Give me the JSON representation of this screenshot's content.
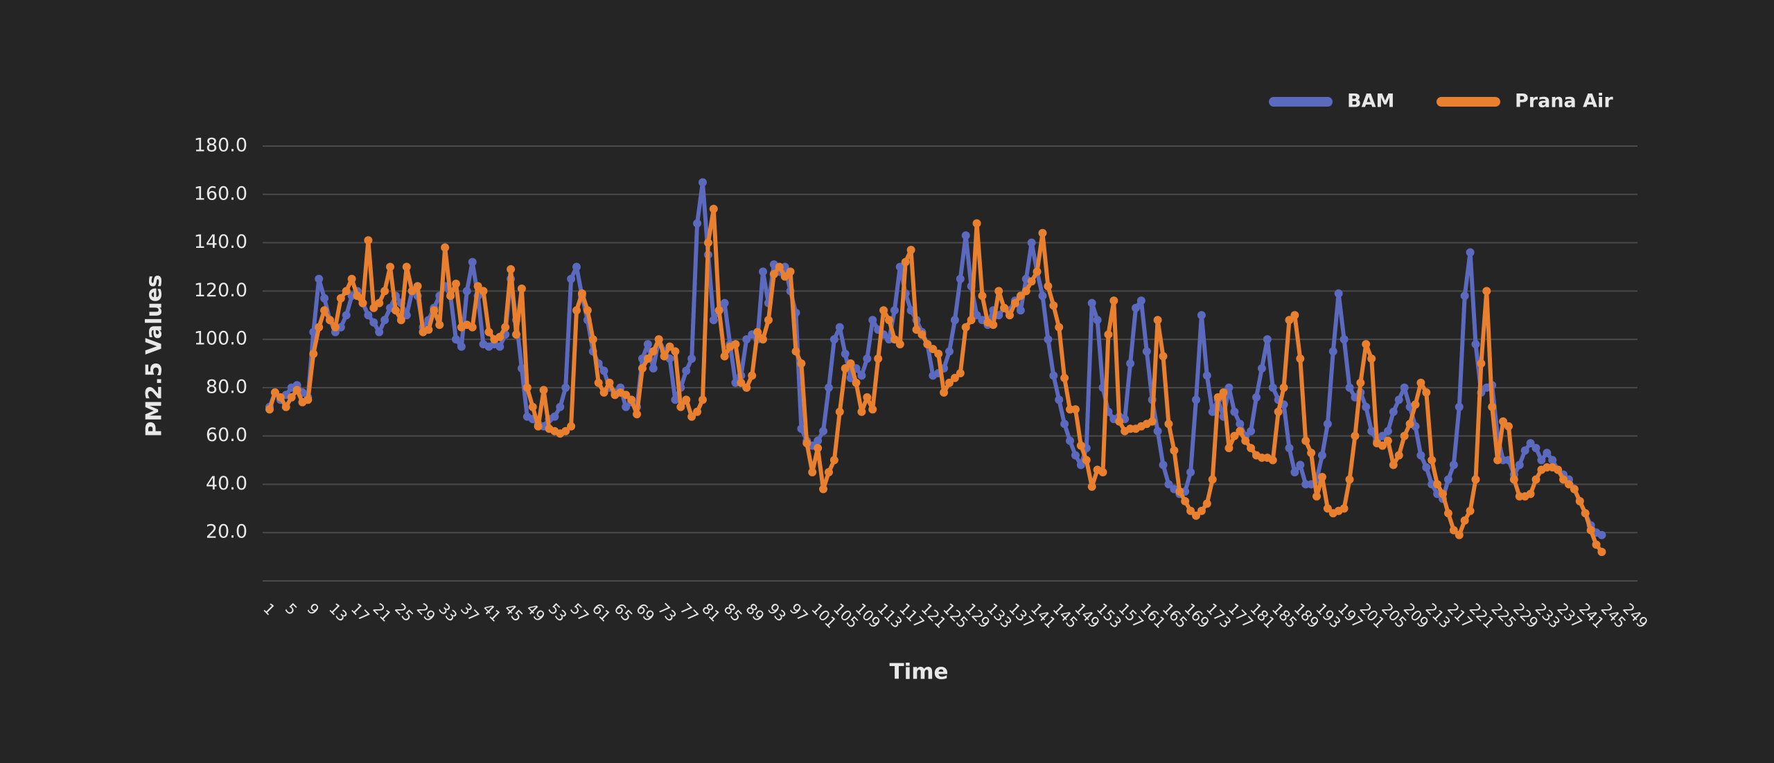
{
  "chart_data": {
    "type": "line",
    "x_label": "Time",
    "y_label": "PM2.5 Values",
    "categories": [
      "1",
      null,
      null,
      null,
      "5",
      null,
      null,
      null,
      "9",
      null,
      null,
      null,
      "13",
      null,
      null,
      null,
      "17",
      null,
      null,
      null,
      "21",
      null,
      null,
      null,
      "25",
      null,
      null,
      null,
      "29",
      null,
      null,
      null,
      "33",
      null,
      null,
      null,
      "37",
      null,
      null,
      null,
      "41",
      null,
      null,
      null,
      "45",
      null,
      null,
      null,
      "49",
      null,
      null,
      null,
      "53",
      null,
      null,
      null,
      "57",
      null,
      null,
      null,
      "61",
      null,
      null,
      null,
      "65",
      null,
      null,
      null,
      "69",
      null,
      null,
      null,
      "73",
      null,
      null,
      null,
      "77",
      null,
      null,
      null,
      "81",
      null,
      null,
      null,
      "85",
      null,
      null,
      null,
      "89",
      null,
      null,
      null,
      "93",
      null,
      null,
      null,
      "97",
      null,
      null,
      null,
      "101",
      null,
      null,
      null,
      "105",
      null,
      null,
      null,
      "109",
      null,
      null,
      null,
      "113",
      null,
      null,
      null,
      "117",
      null,
      null,
      null,
      "121",
      null,
      null,
      null,
      "125",
      null,
      null,
      null,
      "129",
      null,
      null,
      null,
      "133",
      null,
      null,
      null,
      "137",
      null,
      null,
      null,
      "141",
      null,
      null,
      null,
      "145",
      null,
      null,
      null,
      "149",
      null,
      null,
      null,
      "153",
      null,
      null,
      null,
      "157",
      null,
      null,
      null,
      "161",
      null,
      null,
      null,
      "165",
      null,
      null,
      null,
      "169",
      null,
      null,
      null,
      "173",
      null,
      null,
      null,
      "177",
      null,
      null,
      null,
      "181",
      null,
      null,
      null,
      "185",
      null,
      null,
      null,
      "189",
      null,
      null,
      null,
      "193",
      null,
      null,
      null,
      "197",
      null,
      null,
      null,
      "201",
      null,
      null,
      null,
      "205",
      null,
      null,
      null,
      "209",
      null,
      null,
      null,
      "213",
      null,
      null,
      null,
      "217",
      null,
      null,
      null,
      "221",
      null,
      null,
      null,
      "225",
      null,
      null,
      null,
      "229",
      null,
      null,
      null,
      "233",
      null,
      null,
      null,
      "237",
      null,
      null,
      null,
      "241",
      null,
      null,
      null,
      "245",
      null,
      null,
      null,
      "249"
    ],
    "series": [
      {
        "name": "BAM",
        "color": "#5b6abf",
        "values": [
          72,
          78,
          75,
          77,
          80,
          81,
          78,
          76,
          103,
          125,
          117,
          108,
          103,
          105,
          110,
          118,
          120,
          115,
          110,
          107,
          103,
          108,
          113,
          118,
          115,
          110,
          120,
          118,
          105,
          108,
          113,
          118,
          122,
          118,
          100,
          97,
          120,
          132,
          118,
          98,
          97,
          98,
          97,
          102,
          125,
          108,
          88,
          68,
          67,
          65,
          64,
          67,
          68,
          72,
          80,
          125,
          130,
          118,
          108,
          95,
          90,
          87,
          80,
          78,
          80,
          72,
          74,
          72,
          92,
          98,
          88,
          100,
          95,
          92,
          75,
          80,
          87,
          92,
          148,
          165,
          135,
          108,
          112,
          115,
          98,
          82,
          85,
          100,
          102,
          100,
          128,
          115,
          131,
          128,
          130,
          120,
          111,
          63,
          58,
          56,
          58,
          62,
          80,
          100,
          105,
          94,
          84,
          88,
          85,
          92,
          108,
          104,
          102,
          100,
          112,
          130,
          119,
          112,
          108,
          103,
          98,
          85,
          86,
          88,
          95,
          108,
          125,
          143,
          122,
          110,
          108,
          106,
          112,
          110,
          113,
          112,
          116,
          112,
          125,
          140,
          128,
          118,
          100,
          85,
          75,
          65,
          58,
          52,
          48,
          55,
          115,
          108,
          80,
          70,
          67,
          68,
          67,
          90,
          113,
          116,
          95,
          75,
          62,
          48,
          40,
          38,
          36,
          37,
          45,
          75,
          110,
          85,
          70,
          75,
          68,
          80,
          70,
          65,
          60,
          62,
          76,
          88,
          100,
          80,
          75,
          73,
          55,
          45,
          48,
          40,
          40,
          42,
          52,
          65,
          95,
          119,
          100,
          80,
          76,
          78,
          72,
          62,
          58,
          60,
          62,
          70,
          75,
          80,
          72,
          64,
          52,
          47,
          40,
          36,
          34,
          42,
          48,
          72,
          118,
          136,
          98,
          78,
          80,
          81,
          60,
          50,
          50,
          44,
          48,
          54,
          57,
          55,
          50,
          53,
          50,
          46,
          44,
          42,
          38,
          33,
          28,
          23,
          20,
          19,
          null,
          null,
          null,
          null,
          null
        ]
      },
      {
        "name": "Prana Air",
        "color": "#e8802f",
        "values": [
          71,
          78,
          76,
          72,
          76,
          79,
          74,
          75,
          94,
          105,
          112,
          108,
          105,
          117,
          120,
          125,
          118,
          115,
          141,
          113,
          115,
          120,
          130,
          112,
          108,
          130,
          120,
          122,
          103,
          104,
          112,
          106,
          138,
          118,
          123,
          105,
          106,
          105,
          122,
          120,
          103,
          100,
          101,
          105,
          129,
          102,
          121,
          80,
          72,
          64,
          79,
          63,
          62,
          61,
          62,
          64,
          112,
          119,
          112,
          100,
          82,
          78,
          82,
          77,
          78,
          77,
          75,
          69,
          88,
          92,
          95,
          100,
          93,
          97,
          95,
          72,
          75,
          68,
          70,
          75,
          140,
          154,
          112,
          93,
          97,
          98,
          82,
          80,
          85,
          103,
          100,
          108,
          127,
          130,
          126,
          128,
          95,
          90,
          57,
          45,
          55,
          38,
          45,
          50,
          70,
          88,
          90,
          82,
          70,
          76,
          71,
          92,
          112,
          108,
          100,
          98,
          132,
          137,
          104,
          102,
          98,
          96,
          94,
          78,
          82,
          84,
          86,
          105,
          108,
          148,
          118,
          107,
          106,
          120,
          113,
          110,
          115,
          118,
          120,
          124,
          128,
          144,
          122,
          114,
          105,
          84,
          71,
          71,
          56,
          50,
          39,
          46,
          45,
          102,
          116,
          66,
          62,
          63,
          63,
          64,
          65,
          66,
          108,
          93,
          65,
          54,
          37,
          33,
          29,
          27,
          29,
          32,
          42,
          76,
          78,
          55,
          60,
          62,
          58,
          55,
          52,
          51,
          51,
          50,
          70,
          80,
          108,
          110,
          92,
          58,
          53,
          35,
          43,
          30,
          28,
          29,
          30,
          42,
          60,
          82,
          98,
          92,
          57,
          56,
          58,
          48,
          52,
          60,
          65,
          73,
          82,
          78,
          50,
          40,
          36,
          28,
          21,
          19,
          25,
          29,
          42,
          90,
          120,
          72,
          50,
          66,
          64,
          42,
          35,
          35,
          36,
          42,
          46,
          47,
          47,
          46,
          42,
          40,
          38,
          33,
          28,
          21,
          15,
          12,
          null,
          null,
          null,
          null,
          null
        ]
      }
    ],
    "ylim": [
      0,
      180
    ],
    "yticks": [
      {
        "value": 20,
        "label": "20.0"
      },
      {
        "value": 40,
        "label": "40.0"
      },
      {
        "value": 60,
        "label": "60.0"
      },
      {
        "value": 80,
        "label": "80.0"
      },
      {
        "value": 100,
        "label": "100.0"
      },
      {
        "value": 120,
        "label": "120.0"
      },
      {
        "value": 140,
        "label": "140.0"
      },
      {
        "value": 160,
        "label": "160.0"
      },
      {
        "value": 180,
        "label": "180.0"
      }
    ],
    "grid": true,
    "legend": "top-right"
  }
}
